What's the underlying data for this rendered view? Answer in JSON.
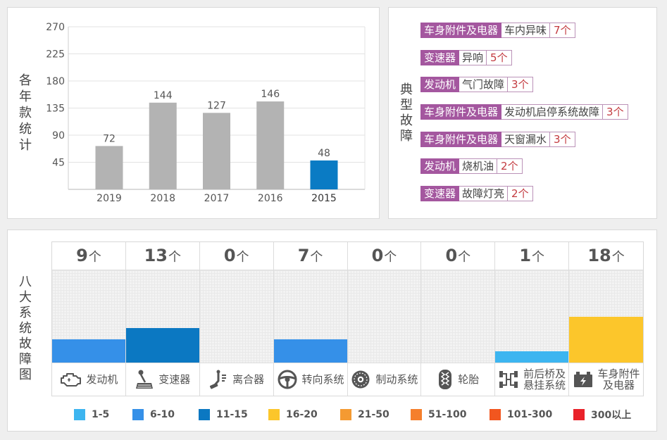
{
  "chart_data": [
    {
      "type": "bar",
      "title": "各年款统计",
      "categories": [
        "2019",
        "2018",
        "2017",
        "2016",
        "2015"
      ],
      "values": [
        72,
        144,
        127,
        146,
        48
      ],
      "ylim": [
        0,
        270
      ],
      "yticks": [
        45,
        90,
        135,
        180,
        225,
        270
      ],
      "grid": true,
      "bar_color": "#b3b3b3",
      "highlight_category": "2015",
      "highlight_color": "#0a7bc4"
    },
    {
      "type": "bar",
      "title": "八大系统故障图",
      "unit": "个",
      "categories": [
        {
          "lines": [
            "发动机"
          ],
          "icon": "engine-icon"
        },
        {
          "lines": [
            "变速器"
          ],
          "icon": "gear-shift-icon"
        },
        {
          "lines": [
            "离合器"
          ],
          "icon": "clutch-pedal-icon"
        },
        {
          "lines": [
            "转向系统"
          ],
          "icon": "steering-wheel-icon"
        },
        {
          "lines": [
            "制动系统"
          ],
          "icon": "brake-disc-icon"
        },
        {
          "lines": [
            "轮胎"
          ],
          "icon": "tire-icon"
        },
        {
          "lines": [
            "前后桥及",
            "悬挂系统"
          ],
          "icon": "axle-suspension-icon"
        },
        {
          "lines": [
            "车身附件",
            "及电器"
          ],
          "icon": "battery-icon"
        }
      ],
      "values": [
        9,
        13,
        0,
        7,
        0,
        0,
        1,
        18
      ],
      "legend": [
        {
          "label": "1-5",
          "color": "#3db5f0"
        },
        {
          "label": "6-10",
          "color": "#3590e8"
        },
        {
          "label": "11-15",
          "color": "#0b78c2"
        },
        {
          "label": "16-20",
          "color": "#fcc62b"
        },
        {
          "label": "21-50",
          "color": "#f49a32"
        },
        {
          "label": "51-100",
          "color": "#f57f2c"
        },
        {
          "label": "101-300",
          "color": "#f2561f"
        },
        {
          "label": "300以上",
          "color": "#e9222a"
        }
      ]
    }
  ],
  "typical_faults": {
    "title": "典型故障",
    "items": [
      {
        "system": "车身附件及电器",
        "issue": "车内异味",
        "count": "7个"
      },
      {
        "system": "变速器",
        "issue": "异响",
        "count": "5个"
      },
      {
        "system": "发动机",
        "issue": "气门故障",
        "count": "3个"
      },
      {
        "system": "车身附件及电器",
        "issue": "发动机启停系统故障",
        "count": "3个"
      },
      {
        "system": "车身附件及电器",
        "issue": "天窗漏水",
        "count": "3个"
      },
      {
        "system": "发动机",
        "issue": "烧机油",
        "count": "2个"
      },
      {
        "system": "变速器",
        "issue": "故障灯亮",
        "count": "2个"
      }
    ]
  }
}
